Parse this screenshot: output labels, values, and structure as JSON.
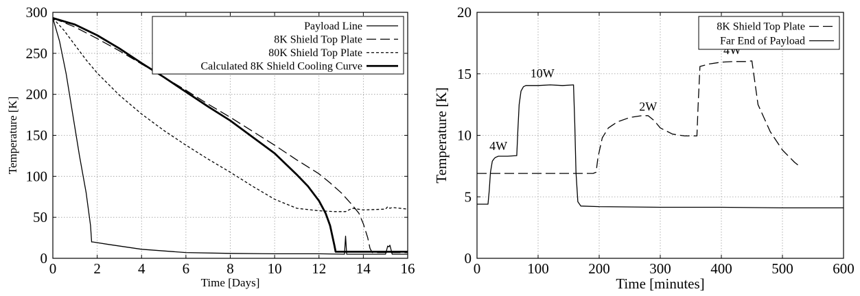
{
  "chart_data": [
    {
      "type": "line",
      "xlabel": "Time [Days]",
      "ylabel": "Temperature [K]",
      "xlim": [
        0,
        16
      ],
      "ylim": [
        0,
        300
      ],
      "xticks": [
        0,
        2,
        4,
        6,
        8,
        10,
        12,
        14,
        16
      ],
      "yticks": [
        0,
        50,
        100,
        150,
        200,
        250,
        300
      ],
      "grid": true,
      "legend_position": "top-right",
      "series": [
        {
          "name": "Payload Line",
          "style": "solid",
          "x": [
            0,
            0.3,
            0.6,
            0.9,
            1.2,
            1.5,
            1.7,
            1.75,
            1.8,
            2.5,
            4,
            6,
            8,
            10,
            12,
            13.15,
            13.2,
            13.25,
            14,
            15,
            15.1,
            15.15,
            15.2,
            15.3,
            16
          ],
          "y": [
            293,
            265,
            225,
            175,
            125,
            80,
            40,
            20,
            20,
            17,
            11,
            7,
            6,
            5.5,
            5.5,
            5,
            27,
            5,
            5,
            5,
            15,
            14,
            16,
            5,
            5
          ]
        },
        {
          "name": "8K Shield Top Plate",
          "style": "dashed",
          "x": [
            0,
            1,
            2,
            3,
            4,
            5,
            6,
            7,
            8,
            9,
            10,
            11,
            12,
            12.5,
            13,
            13.5,
            13.8,
            14,
            14.2,
            14.3,
            14.4,
            16
          ],
          "y": [
            293,
            282,
            268,
            253,
            237,
            221,
            205,
            188,
            172,
            155,
            138,
            120,
            103,
            92,
            80,
            65,
            55,
            42,
            25,
            12,
            7,
            7
          ]
        },
        {
          "name": "80K Shield Top Plate",
          "style": "dotted",
          "x": [
            0,
            0.5,
            1,
            1.5,
            2,
            3,
            4,
            5,
            6,
            7,
            8,
            9,
            10,
            11,
            12,
            12.7,
            13.2,
            13.5,
            14,
            15,
            15.1,
            15.2,
            15.3,
            16
          ],
          "y": [
            293,
            278,
            260,
            242,
            226,
            199,
            176,
            156,
            138,
            121,
            105,
            88,
            72,
            61,
            58,
            57,
            57,
            61,
            59,
            60,
            63,
            61,
            62,
            60
          ]
        },
        {
          "name": "Calculated 8K Shield Cooling Curve",
          "style": "thick",
          "x": [
            0,
            1,
            2,
            3,
            4,
            5,
            6,
            7,
            8,
            9,
            10,
            11,
            11.5,
            12,
            12.3,
            12.5,
            12.7,
            12.75,
            16
          ],
          "y": [
            293,
            285,
            272,
            256,
            238,
            221,
            203,
            185,
            168,
            148,
            128,
            102,
            88,
            70,
            55,
            40,
            15,
            8,
            8
          ]
        }
      ]
    },
    {
      "type": "line",
      "xlabel": "Time [minutes]",
      "ylabel": "Temperature [K]",
      "xlim": [
        0,
        600
      ],
      "ylim": [
        0,
        20
      ],
      "xticks": [
        0,
        100,
        200,
        300,
        400,
        500,
        600
      ],
      "yticks": [
        0,
        5,
        10,
        15,
        20
      ],
      "grid": true,
      "legend_position": "top-right",
      "annotations": [
        {
          "text": "4W",
          "x": 35,
          "y": 8.8
        },
        {
          "text": "10W",
          "x": 107,
          "y": 14.7
        },
        {
          "text": "2W",
          "x": 280,
          "y": 12.0
        },
        {
          "text": "4W",
          "x": 418,
          "y": 16.6
        }
      ],
      "series": [
        {
          "name": "8K Shield Top Plate",
          "style": "dashed",
          "x": [
            0,
            100,
            190,
            195,
            198,
            205,
            215,
            230,
            250,
            270,
            280,
            290,
            300,
            320,
            340,
            360,
            362,
            365,
            380,
            400,
            420,
            440,
            450,
            460,
            480,
            500,
            520,
            530
          ],
          "y": [
            6.9,
            6.9,
            6.9,
            7.0,
            8.2,
            9.8,
            10.6,
            11.1,
            11.45,
            11.6,
            11.6,
            11.2,
            10.6,
            10.1,
            9.95,
            9.95,
            12.5,
            15.6,
            15.8,
            15.95,
            16.0,
            16.0,
            16.05,
            12.5,
            10.3,
            8.8,
            7.8,
            7.4
          ]
        },
        {
          "name": "Far End of Payload",
          "style": "solid",
          "x": [
            0,
            18,
            20,
            22,
            25,
            28,
            30,
            35,
            50,
            65,
            67,
            69,
            72,
            76,
            80,
            100,
            120,
            140,
            158,
            160,
            162,
            165,
            170,
            200,
            300,
            400,
            500,
            600
          ],
          "y": [
            4.4,
            4.4,
            5.5,
            7.0,
            7.9,
            8.1,
            8.2,
            8.3,
            8.3,
            8.35,
            10.5,
            12.5,
            13.6,
            13.95,
            14.05,
            14.05,
            14.1,
            14.05,
            14.1,
            11.0,
            7.0,
            4.6,
            4.25,
            4.2,
            4.15,
            4.15,
            4.1,
            4.1
          ]
        }
      ]
    }
  ]
}
